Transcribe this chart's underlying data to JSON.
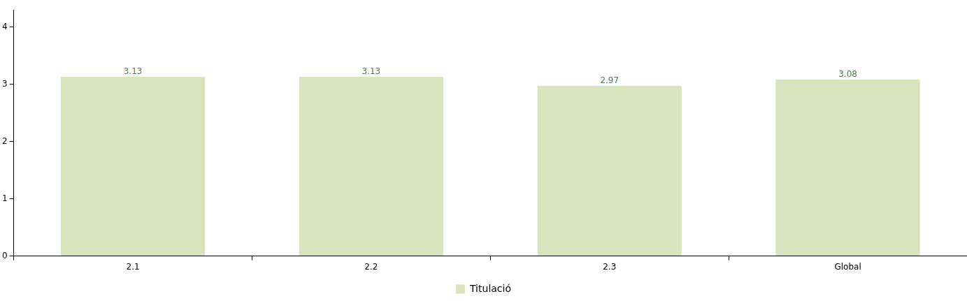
{
  "chart_data": {
    "type": "bar",
    "categories": [
      "2.1",
      "2.2",
      "2.3",
      "Global"
    ],
    "series": [
      {
        "name": "Titulació",
        "color": "#d9e3be",
        "values": [
          3.13,
          3.13,
          2.97,
          3.08
        ]
      }
    ],
    "ylim": [
      0,
      4.3
    ],
    "yticks": [
      0,
      1,
      2,
      3,
      4
    ],
    "grid": false,
    "legend": "bottom",
    "data_labels": true
  }
}
